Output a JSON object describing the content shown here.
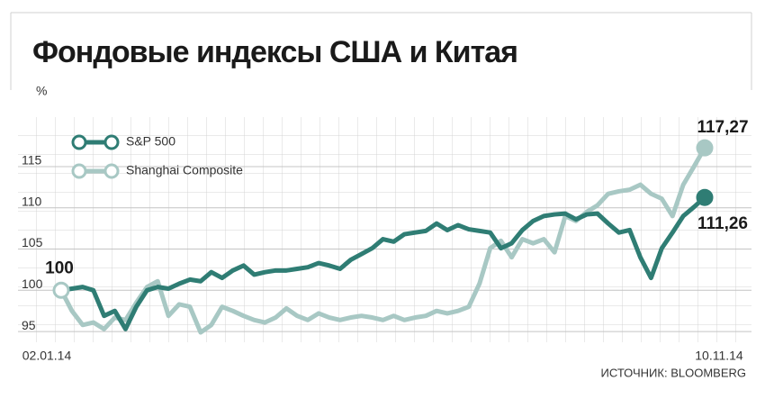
{
  "chart_data": {
    "type": "line",
    "title": "Фондовые индексы США и Китая",
    "y_label": "%",
    "source": "ИСТОЧНИК: BLOOMBERG",
    "categories": [
      "02.01.14",
      null,
      null,
      null,
      null,
      null,
      null,
      null,
      null,
      null,
      null,
      null,
      null,
      null,
      null,
      null,
      null,
      null,
      null,
      null,
      null,
      null,
      null,
      null,
      null,
      null,
      null,
      null,
      null,
      null,
      null,
      null,
      null,
      null,
      null,
      null,
      null,
      null,
      null,
      null,
      null,
      null,
      null,
      null,
      null,
      null,
      null,
      null,
      null,
      null,
      null,
      null,
      null,
      null,
      null,
      null,
      null,
      null,
      null,
      null,
      "10.11.14"
    ],
    "ylim": [
      93.7,
      121
    ],
    "yticks": [
      95,
      100,
      105,
      110,
      115
    ],
    "series": [
      {
        "name": "S&P 500",
        "color": "#2f7d74",
        "values": [
          100,
          100.2,
          100.4,
          100,
          96.9,
          97.5,
          95.3,
          98.0,
          100,
          100.4,
          100.2,
          100.8,
          101.3,
          101.1,
          102.2,
          101.5,
          102.4,
          103.0,
          101.9,
          102.2,
          102.4,
          102.4,
          102.6,
          102.8,
          103.3,
          103.0,
          102.6,
          103.7,
          104.4,
          105.1,
          106.2,
          105.9,
          106.8,
          107.0,
          107.2,
          108.1,
          107.3,
          107.9,
          107.4,
          107.2,
          107.0,
          105.1,
          105.7,
          107.3,
          108.4,
          109.0,
          109.2,
          109.3,
          108.6,
          109.2,
          109.3,
          108.1,
          107.0,
          107.3,
          104.0,
          101.5,
          105.1,
          107.0,
          109.0,
          110.1,
          111.26
        ],
        "value_labels": [
          null,
          null,
          null,
          null,
          null,
          null,
          null,
          null,
          null,
          null,
          null,
          null,
          null,
          null,
          null,
          null,
          null,
          null,
          null,
          null,
          null,
          null,
          null,
          null,
          null,
          null,
          null,
          null,
          null,
          null,
          null,
          null,
          null,
          null,
          null,
          null,
          null,
          null,
          null,
          null,
          null,
          null,
          null,
          null,
          null,
          null,
          null,
          null,
          null,
          null,
          null,
          null,
          null,
          null,
          null,
          null,
          null,
          null,
          null,
          null,
          "111,26"
        ]
      },
      {
        "name": "Shanghai Composite",
        "color": "#a8c8c4",
        "values": [
          100,
          97.5,
          95.8,
          96.1,
          95.3,
          96.7,
          96.4,
          98.5,
          100.4,
          101.1,
          96.9,
          98.3,
          98.0,
          94.9,
          95.8,
          98.0,
          97.5,
          96.9,
          96.4,
          96.1,
          96.7,
          97.8,
          96.9,
          96.4,
          97.2,
          96.7,
          96.4,
          96.7,
          96.9,
          96.7,
          96.4,
          96.9,
          96.4,
          96.7,
          96.9,
          97.5,
          97.2,
          97.5,
          98.0,
          100.8,
          105.1,
          106.0,
          104.0,
          106.2,
          105.7,
          106.2,
          104.6,
          109.0,
          108.4,
          109.5,
          110.3,
          111.7,
          112.0,
          112.2,
          112.8,
          111.7,
          111.1,
          109.0,
          112.8,
          115.0,
          117.27
        ],
        "value_labels": [
          "100",
          null,
          null,
          null,
          null,
          null,
          null,
          null,
          null,
          null,
          null,
          null,
          null,
          null,
          null,
          null,
          null,
          null,
          null,
          null,
          null,
          null,
          null,
          null,
          null,
          null,
          null,
          null,
          null,
          null,
          null,
          null,
          null,
          null,
          null,
          null,
          null,
          null,
          null,
          null,
          null,
          null,
          null,
          null,
          null,
          null,
          null,
          null,
          null,
          null,
          null,
          null,
          null,
          null,
          null,
          null,
          null,
          null,
          null,
          null,
          "117,27"
        ]
      }
    ]
  }
}
